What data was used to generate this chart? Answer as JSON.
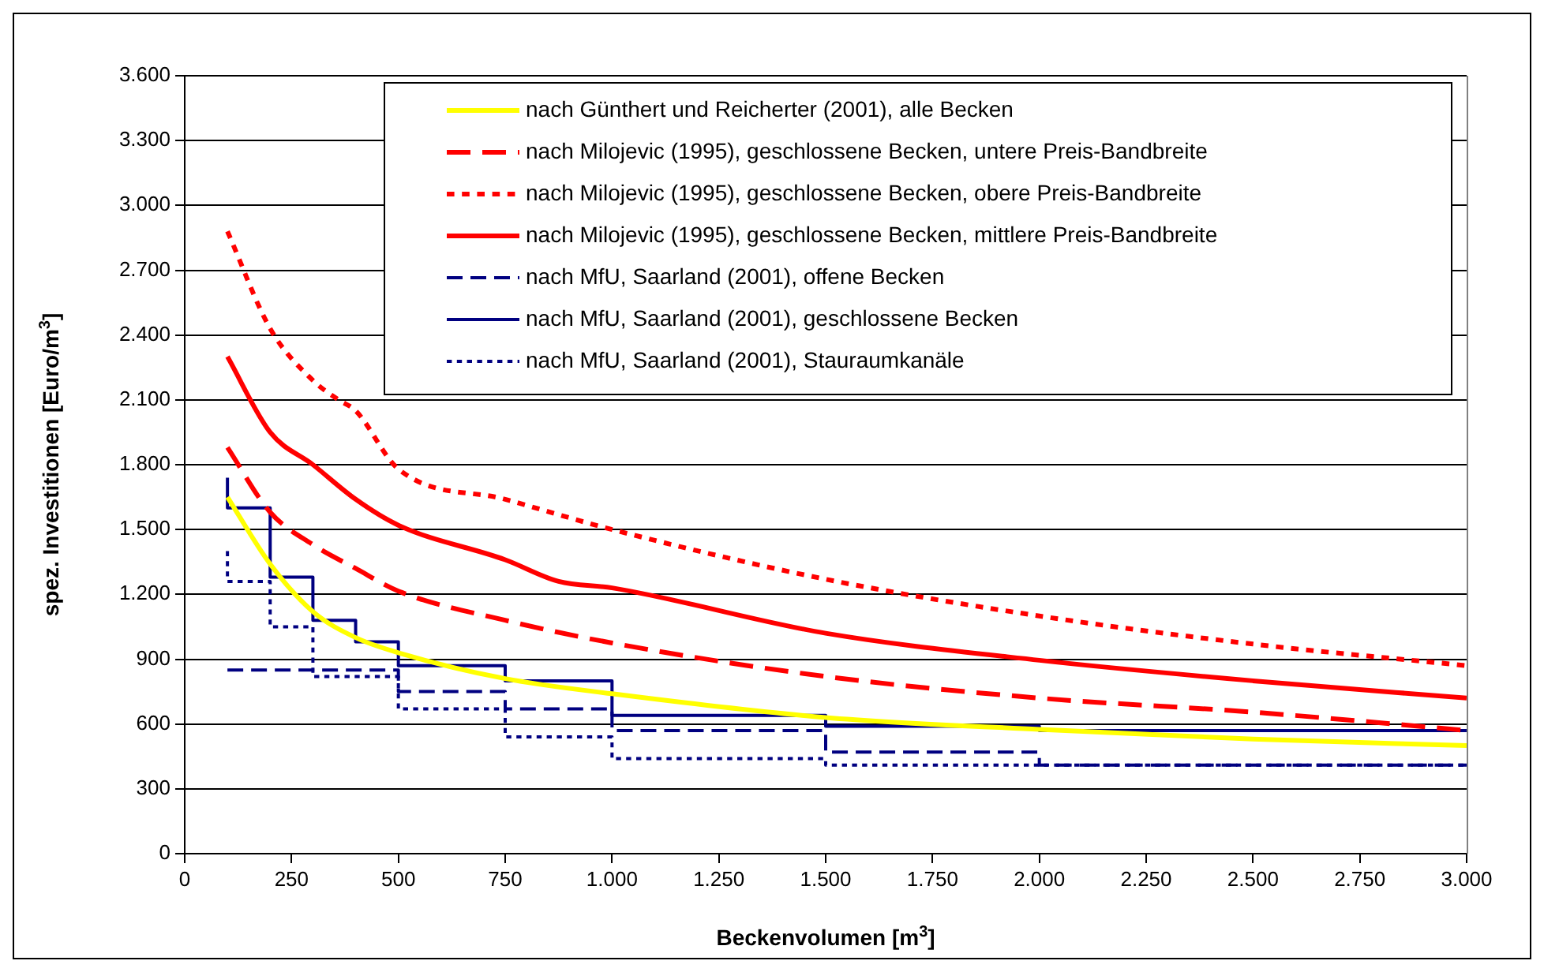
{
  "chart_data": {
    "type": "line",
    "xlabel": "Beckenvolumen [m$^{3}$]",
    "ylabel": "spez. Investitionen [Euro/m$^{3}$]",
    "xlim": [
      0,
      3000
    ],
    "xticks": [
      0,
      250,
      500,
      750,
      {
        "value": 1000,
        "label": "1.000"
      },
      {
        "value": 1250,
        "label": "1.250"
      },
      {
        "value": 1500,
        "label": "1.500"
      },
      {
        "value": 1750,
        "label": "1.750"
      },
      {
        "value": 2000,
        "label": "2.000"
      },
      {
        "value": 2250,
        "label": "2.250"
      },
      {
        "value": 2500,
        "label": "2.500"
      },
      {
        "value": 2750,
        "label": "2.750"
      },
      {
        "value": 3000,
        "label": "3.000"
      }
    ],
    "ylim": [
      0,
      3600
    ],
    "yticks": [
      0,
      300,
      600,
      900,
      {
        "value": 1200,
        "label": "1.200"
      },
      {
        "value": 1500,
        "label": "1.500"
      },
      {
        "value": 1800,
        "label": "1.800"
      },
      {
        "value": 2100,
        "label": "2.100"
      },
      {
        "value": 2400,
        "label": "2.400"
      },
      {
        "value": 2700,
        "label": "2.700"
      },
      {
        "value": 3000,
        "label": "3.000"
      },
      {
        "value": 3300,
        "label": "3.300"
      },
      {
        "value": 3600,
        "label": "3.600"
      }
    ],
    "grid": "y",
    "legend": "top right",
    "marker": "none",
    "series": [
      {
        "name": "nach Günthert und Reicherter (2001), alle Becken",
        "type": "line",
        "color": "#ffff00",
        "line_style": "solid",
        "x": [
          100,
          200,
          300,
          400,
          500,
          750,
          1000,
          1500,
          2000,
          2500,
          3000
        ],
        "values": [
          1650,
          1340,
          1120,
          1000,
          930,
          810,
          740,
          630,
          575,
          530,
          500
        ]
      },
      {
        "name": "nach Milojevic (1995), geschlossene Becken, untere Preis-Bandbreite",
        "type": "line",
        "color": "#ff0000",
        "line_style": "dashed",
        "x": [
          100,
          200,
          300,
          400,
          500,
          750,
          1000,
          1500,
          2000,
          2500,
          3000
        ],
        "values": [
          1880,
          1580,
          1430,
          1320,
          1215,
          1080,
          975,
          820,
          720,
          655,
          570
        ]
      },
      {
        "name": "nach Milojevic (1995), geschlossene Becken, obere Preis-Bandbreite",
        "type": "line",
        "color": "#ff0000",
        "line_style": "dotted",
        "x": [
          100,
          200,
          300,
          360,
          400,
          500,
          750,
          1000,
          1500,
          2000,
          2500,
          3000
        ],
        "values": [
          2880,
          2430,
          2190,
          2100,
          2050,
          1780,
          1640,
          1500,
          1270,
          1100,
          970,
          870
        ]
      },
      {
        "name": "nach Milojevic (1995), geschlossene Becken, mittlere Preis-Bandbreite",
        "type": "line",
        "color": "#ff0000",
        "line_style": "solid",
        "x": [
          100,
          200,
          300,
          400,
          500,
          750,
          875,
          1000,
          1500,
          2000,
          2500,
          3000
        ],
        "values": [
          2300,
          1950,
          1800,
          1640,
          1520,
          1360,
          1260,
          1230,
          1020,
          895,
          800,
          720
        ]
      },
      {
        "name": "nach MfU, Saarland (2001), offene Becken",
        "type": "step",
        "color": "#000080",
        "line_style": "dashed",
        "x": [
          100,
          500,
          750,
          1000,
          1500,
          2000,
          3000
        ],
        "values": [
          850,
          750,
          670,
          570,
          470,
          410,
          410
        ]
      },
      {
        "name": "nach MfU, Saarland (2001), geschlossene Becken",
        "type": "step",
        "color": "#000080",
        "line_style": "solid",
        "x": [
          100,
          100,
          200,
          300,
          400,
          500,
          750,
          1000,
          1500,
          2000,
          3000
        ],
        "values": [
          1740,
          1600,
          1280,
          1080,
          980,
          870,
          800,
          640,
          590,
          570,
          570
        ]
      },
      {
        "name": "nach MfU, Saarland (2001), Stauraumkanäle",
        "type": "step",
        "color": "#000080",
        "line_style": "dotted",
        "x": [
          100,
          100,
          200,
          300,
          500,
          750,
          1000,
          1500,
          3000
        ],
        "values": [
          1400,
          1260,
          1050,
          820,
          670,
          540,
          440,
          410,
          410
        ]
      }
    ]
  }
}
